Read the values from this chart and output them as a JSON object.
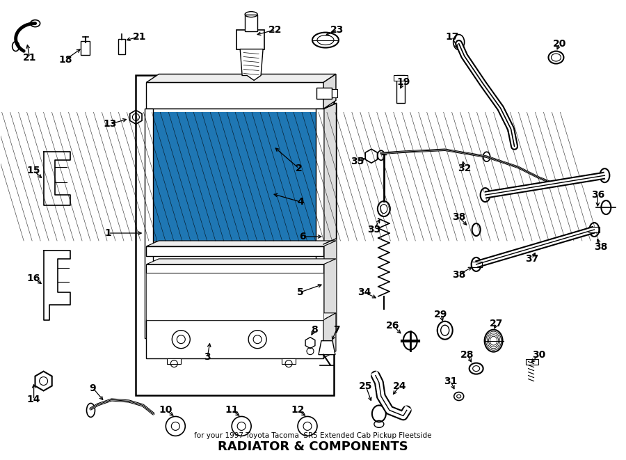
{
  "title": "RADIATOR & COMPONENTS",
  "subtitle": "for your 1997 Toyota Tacoma  SR5 Extended Cab Pickup Fleetside",
  "bg_color": "#ffffff",
  "line_color": "#000000",
  "fig_width": 9.0,
  "fig_height": 6.61,
  "dpi": 100
}
